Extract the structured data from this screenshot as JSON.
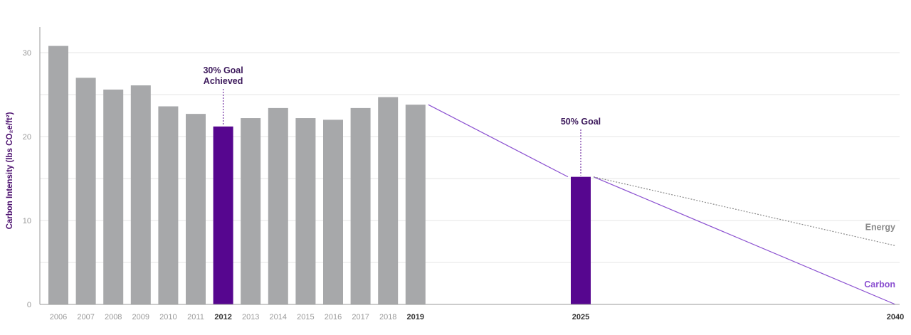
{
  "chart_data": {
    "type": "bar",
    "ylabel": "Carbon Intensity (lbs CO₂e/ft²)",
    "ylim": [
      0,
      33
    ],
    "yticks": [
      0,
      10,
      20,
      30
    ],
    "grid": true,
    "bars": [
      {
        "year": "2006",
        "value": 30.8,
        "highlight": false
      },
      {
        "year": "2007",
        "value": 27.0,
        "highlight": false
      },
      {
        "year": "2008",
        "value": 25.6,
        "highlight": false
      },
      {
        "year": "2009",
        "value": 26.1,
        "highlight": false
      },
      {
        "year": "2010",
        "value": 23.6,
        "highlight": false
      },
      {
        "year": "2011",
        "value": 22.7,
        "highlight": false
      },
      {
        "year": "2012",
        "value": 21.2,
        "highlight": true
      },
      {
        "year": "2013",
        "value": 22.2,
        "highlight": false
      },
      {
        "year": "2014",
        "value": 23.4,
        "highlight": false
      },
      {
        "year": "2015",
        "value": 22.2,
        "highlight": false
      },
      {
        "year": "2016",
        "value": 22.0,
        "highlight": false
      },
      {
        "year": "2017",
        "value": 23.4,
        "highlight": false
      },
      {
        "year": "2018",
        "value": 24.7,
        "highlight": false
      },
      {
        "year": "2019",
        "value": 23.8,
        "highlight": false
      },
      {
        "year": "2025",
        "value": 15.2,
        "highlight": true
      }
    ],
    "bold_ticks": [
      "2012",
      "2019",
      "2025",
      "2040"
    ],
    "end_tick": "2040",
    "series": [
      {
        "name": "Carbon",
        "x": [
          "2019",
          "2025",
          "2040"
        ],
        "values": [
          23.8,
          15.2,
          0
        ],
        "color": "#8a4fd0",
        "style": "solid"
      },
      {
        "name": "Energy",
        "x": [
          "2025",
          "2040"
        ],
        "values": [
          15.2,
          7.0
        ],
        "color": "#8a8a8a",
        "style": "dotted"
      }
    ],
    "annotations": [
      {
        "year": "2012",
        "lines": [
          "30% Goal",
          "Achieved"
        ]
      },
      {
        "year": "2025",
        "lines": [
          "50% Goal"
        ]
      }
    ],
    "colors": {
      "bar": "#a7a8aa",
      "highlight": "#56068f",
      "grid": "#e6e6e6",
      "axis": "#9a9a9a"
    }
  }
}
